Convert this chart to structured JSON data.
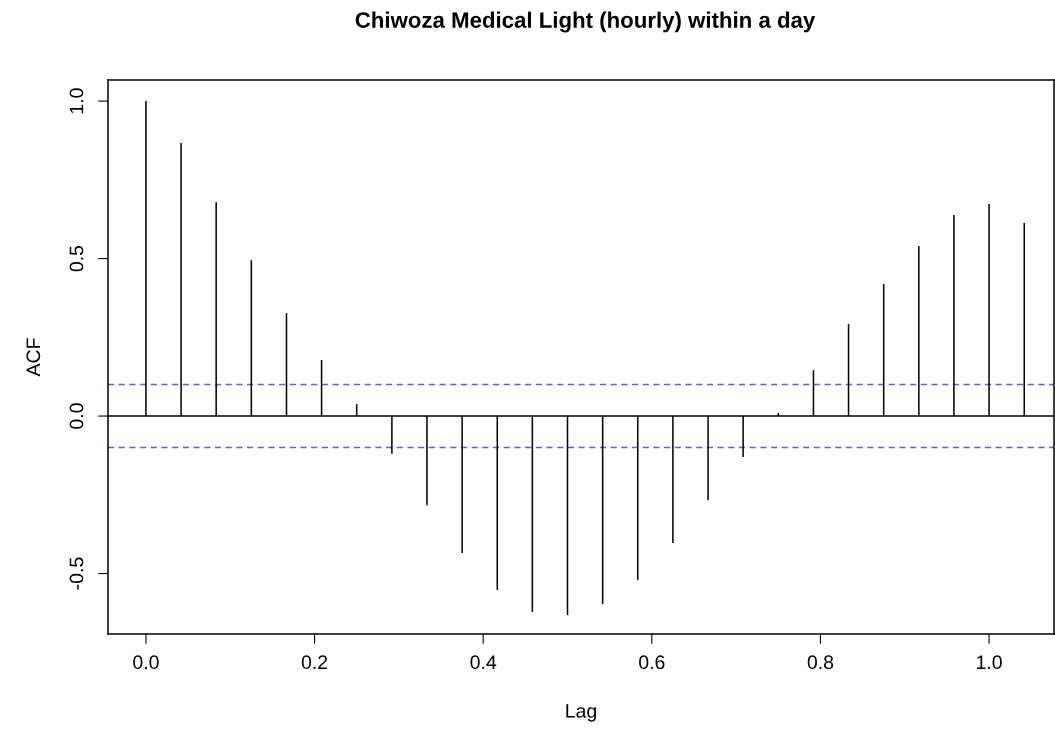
{
  "chart_data": {
    "type": "bar",
    "title": "Chiwoza Medical Light (hourly) within a day",
    "xlabel": "Lag",
    "ylabel": "ACF",
    "x": [
      0,
      0.0417,
      0.0833,
      0.125,
      0.1667,
      0.2083,
      0.25,
      0.2917,
      0.3333,
      0.375,
      0.4167,
      0.4583,
      0.5,
      0.5417,
      0.5833,
      0.625,
      0.6667,
      0.7083,
      0.75,
      0.7917,
      0.8333,
      0.875,
      0.9167,
      0.9583,
      1.0,
      1.0417
    ],
    "values": [
      1.0,
      0.867,
      0.679,
      0.495,
      0.327,
      0.178,
      0.038,
      -0.12,
      -0.283,
      -0.435,
      -0.552,
      -0.622,
      -0.632,
      -0.597,
      -0.521,
      -0.403,
      -0.267,
      -0.13,
      0.01,
      0.146,
      0.292,
      0.419,
      0.54,
      0.638,
      0.673,
      0.613
    ],
    "color": "#000000",
    "xlim": [
      -0.045,
      1.077
    ],
    "ylim": [
      -0.692,
      1.067
    ],
    "xticks": [
      {
        "value": 0,
        "label": "0.0"
      },
      {
        "value": 0.2,
        "label": "0.2"
      },
      {
        "value": 0.4,
        "label": "0.4"
      },
      {
        "value": 0.6,
        "label": "0.6"
      },
      {
        "value": 0.8,
        "label": "0.8"
      },
      {
        "value": 1.0,
        "label": "1.0"
      }
    ],
    "yticks": [
      {
        "value": -0.5,
        "label": "-0.5"
      },
      {
        "value": 0,
        "label": "0.0"
      },
      {
        "value": 0.5,
        "label": "0.5"
      },
      {
        "value": 1.0,
        "label": "1.0"
      }
    ],
    "ref_lines": [
      {
        "axis": "y",
        "value": 0,
        "label": null,
        "color": "#000000",
        "line_style": "solid"
      },
      {
        "axis": "y",
        "value": 0.1,
        "label": null,
        "color": "#5a5aff",
        "line_style": "dashed"
      },
      {
        "axis": "y",
        "value": -0.1,
        "label": null,
        "color": "#5a5aff",
        "line_style": "dashed"
      }
    ],
    "grid": false,
    "legend": false
  }
}
